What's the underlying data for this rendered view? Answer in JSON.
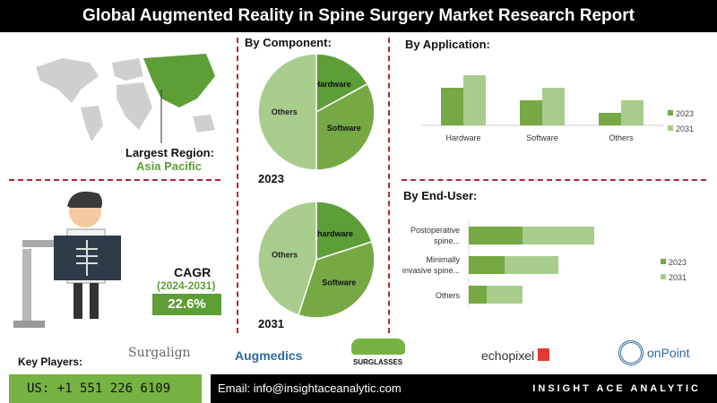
{
  "title": "Global Augmented Reality in Spine Surgery Market Research Report",
  "region": {
    "label": "Largest Region:",
    "value": "Asia Pacific"
  },
  "cagr": {
    "label": "CAGR",
    "period": "(2024-2031)",
    "value": "22.6%"
  },
  "component": {
    "heading": "By Component:"
  },
  "application": {
    "heading": "By Application:"
  },
  "end_user": {
    "heading": "By End-User:"
  },
  "key_players": {
    "label": "Key Players:",
    "logos": [
      "Surgalign",
      "Augmedics",
      "SURGLASSES",
      "echopixel",
      "onPoint"
    ]
  },
  "footer": {
    "phone": "US: +1 551 226 6109",
    "email": "Email: info@insightaceanalytic.com",
    "brand": "INSIGHT ACE ANALYTIC"
  },
  "colors": {
    "dark_green": "#5d9e36",
    "mid_green": "#76a844",
    "light_green": "#a8cc8c",
    "accent_red": "#b22a2a"
  },
  "chart_data": [
    {
      "type": "pie",
      "title": "2023",
      "labels": [
        "Hardware",
        "Software",
        "Others"
      ],
      "values": [
        17,
        33,
        50
      ]
    },
    {
      "type": "pie",
      "title": "2031",
      "labels": [
        "hardware",
        "Software",
        "Others"
      ],
      "values": [
        20,
        35,
        45
      ]
    },
    {
      "type": "bar",
      "categories": [
        "Hardware",
        "Software",
        "Others"
      ],
      "series": [
        {
          "name": "2023",
          "values": [
            3,
            2,
            1
          ]
        },
        {
          "name": "2031",
          "values": [
            4,
            3,
            2
          ]
        }
      ],
      "legend": "right",
      "grid": false
    },
    {
      "type": "bar",
      "orientation": "horizontal",
      "stacked": true,
      "categories": [
        "Postoperative spine...",
        "Minimally invasive spine...",
        "Others"
      ],
      "series": [
        {
          "name": "2023",
          "values": [
            3,
            2,
            1
          ]
        },
        {
          "name": "2031",
          "values": [
            4,
            3,
            2
          ]
        }
      ],
      "legend": "right",
      "grid": false
    }
  ]
}
